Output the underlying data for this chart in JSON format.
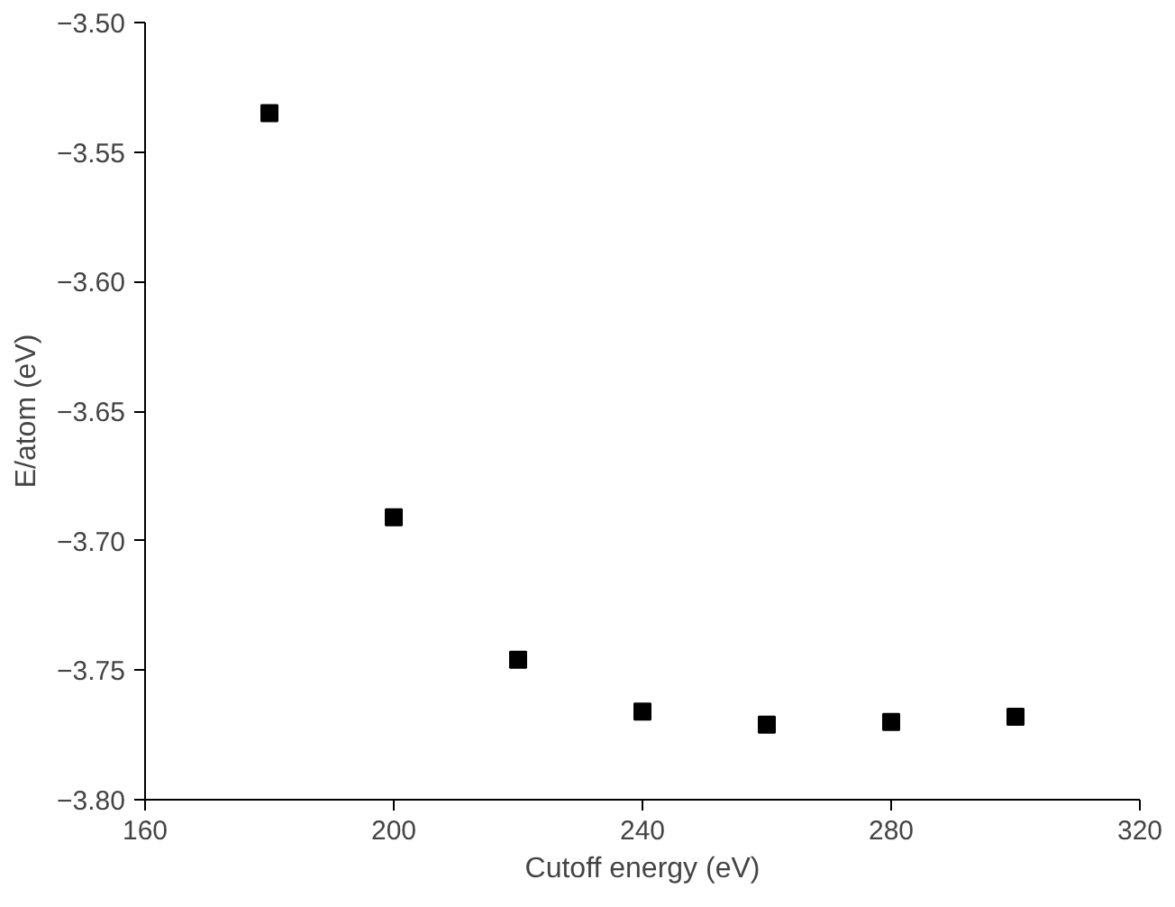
{
  "chart_data": {
    "type": "scatter",
    "xlabel": "Cutoff energy (eV)",
    "ylabel": "E/atom (eV)",
    "x": [
      180,
      200,
      220,
      240,
      260,
      280,
      300
    ],
    "series": [
      {
        "color": "#000000",
        "values": [
          -3.535,
          -3.691,
          -3.746,
          -3.766,
          -3.771,
          -3.77,
          -3.768
        ]
      }
    ],
    "xlim": [
      160,
      320
    ],
    "xticks": [
      160,
      200,
      240,
      280,
      320
    ],
    "ylim": [
      -3.8,
      -3.5
    ],
    "yticks": [
      {
        "value": -3.8,
        "label": "−3.80"
      },
      {
        "value": -3.75,
        "label": "−3.75"
      },
      {
        "value": -3.7,
        "label": "−3.70"
      },
      {
        "value": -3.65,
        "label": "−3.65"
      },
      {
        "value": -3.6,
        "label": "−3.60"
      },
      {
        "value": -3.55,
        "label": "−3.55"
      },
      {
        "value": -3.5,
        "label": "−3.50"
      }
    ],
    "grid": false,
    "marker": "square"
  }
}
